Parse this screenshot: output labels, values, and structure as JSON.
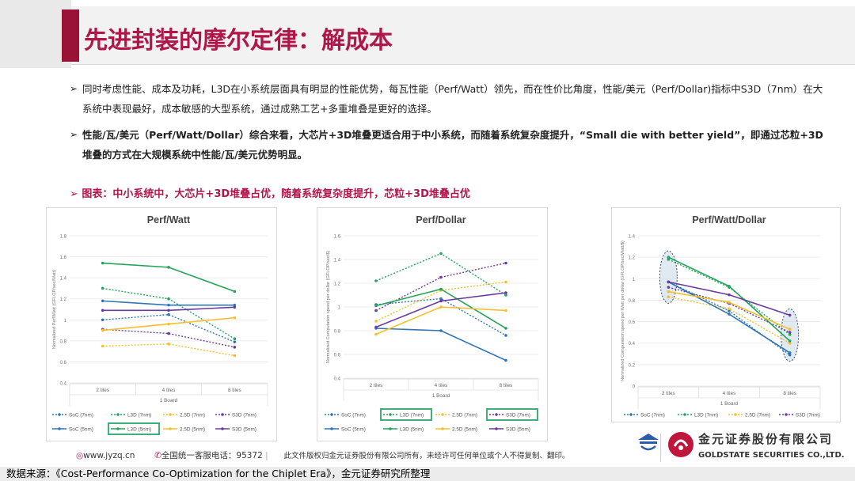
{
  "title": "先进封装的摩尔定律：解成本",
  "bullets": [
    "同时考虑性能、成本及功耗，L3D在小系统层面具有明显的性能优势，每瓦性能（Perf/Watt）领先，而在性价比角度，性能/美元（Perf/Dollar)指标中S3D（7nm）在大系统中表现最好，成本敏感的大型系统，通过成熟工艺+多重堆叠是更好的选择。",
    "性能/瓦/美元（Perf/Watt/Dollar）综合来看，大芯片+3D堆叠更适合用于中小系统，而随着系统复杂度提升，“Small die with better yield”，即通过芯粒+3D堆叠的方式在大规模系统中性能/瓦/美元优势明显。"
  ],
  "subtitle": "图表：中小系统中，大芯片+3D堆叠占优，随着系统复杂度提升，芯粒+3D堆叠占优",
  "footer": {
    "website": "www.jyzq.cn",
    "hotline": "全国统一客服电话：95372",
    "disclaimer": "此文件版权归金元证券股份有限公司所有，未经许可任何单位或个人不得复制、翻印。",
    "company_cn": "金元证券股份有限公司",
    "company_en": "GOLDSTATE SECURITIES CO.,LTD.",
    "source": "数据来源：《Cost-Performance Co-Optimization for the Chiplet Era》，金元证券研究所整理"
  },
  "colors": {
    "title": "#b0164a",
    "SoC": "#2e75b6",
    "L3D": "#22a55a",
    "2.5D": "#f5c02c",
    "S3D": "#6b3aa0"
  },
  "chart_data": [
    {
      "type": "line",
      "title": "Perf/Watt",
      "ylabel": "Normalized Perf/Watt (GFLOP/sec/Watt)",
      "xlabel": "1 Board",
      "categories": [
        "2 tiles",
        "4 tiles",
        "8 tiles"
      ],
      "ylim": [
        0.4,
        1.8
      ],
      "yticks": [
        "0.4",
        "0.6",
        "0.8",
        "1",
        "1.2",
        "1.4",
        "1.6",
        "1.8"
      ],
      "series": [
        {
          "name": "SoC (7nm)",
          "group": "SoC",
          "dashed": true,
          "values": [
            1.0,
            1.05,
            0.79
          ]
        },
        {
          "name": "L3D (7nm)",
          "group": "L3D",
          "dashed": true,
          "values": [
            1.3,
            1.2,
            0.82
          ]
        },
        {
          "name": "2.5D (7nm)",
          "group": "2.5D",
          "dashed": true,
          "values": [
            0.75,
            0.77,
            0.66
          ]
        },
        {
          "name": "S3D (7nm)",
          "group": "S3D",
          "dashed": true,
          "values": [
            0.91,
            0.87,
            0.74
          ]
        },
        {
          "name": "SoC (5nm)",
          "group": "SoC",
          "dashed": false,
          "values": [
            1.18,
            1.14,
            1.14
          ]
        },
        {
          "name": "L3D (5nm)",
          "group": "L3D",
          "dashed": false,
          "values": [
            1.54,
            1.5,
            1.27
          ]
        },
        {
          "name": "2.5D (5nm)",
          "group": "2.5D",
          "dashed": false,
          "values": [
            0.9,
            0.96,
            1.02
          ]
        },
        {
          "name": "S3D (5nm)",
          "group": "S3D",
          "dashed": false,
          "values": [
            1.09,
            1.09,
            1.12
          ]
        }
      ],
      "highlight_legend": [
        "L3D (5nm)"
      ]
    },
    {
      "type": "line",
      "title": "Perf/Dollar",
      "ylabel": "Normalized Computation speed per dollar (GFLOP/sec/$)",
      "xlabel": "1 Board",
      "categories": [
        "2 tiles",
        "4 tiles",
        "8 tiles"
      ],
      "ylim": [
        0.4,
        1.6
      ],
      "yticks": [
        "0.4",
        "0.6",
        "0.8",
        "1",
        "1.2",
        "1.4",
        "1.6"
      ],
      "series": [
        {
          "name": "SoC (7nm)",
          "group": "SoC",
          "dashed": true,
          "values": [
            1.02,
            1.07,
            0.76
          ]
        },
        {
          "name": "L3D (7nm)",
          "group": "L3D",
          "dashed": true,
          "values": [
            1.22,
            1.45,
            1.1
          ]
        },
        {
          "name": "2.5D (7nm)",
          "group": "2.5D",
          "dashed": true,
          "values": [
            0.88,
            1.14,
            1.21
          ]
        },
        {
          "name": "S3D (7nm)",
          "group": "S3D",
          "dashed": true,
          "values": [
            0.97,
            1.25,
            1.37
          ]
        },
        {
          "name": "SoC (5nm)",
          "group": "SoC",
          "dashed": false,
          "values": [
            0.82,
            0.8,
            0.55
          ]
        },
        {
          "name": "L3D (5nm)",
          "group": "L3D",
          "dashed": false,
          "values": [
            1.01,
            1.15,
            0.82
          ]
        },
        {
          "name": "2.5D (5nm)",
          "group": "2.5D",
          "dashed": false,
          "values": [
            0.77,
            1.0,
            0.97
          ]
        },
        {
          "name": "S3D (5nm)",
          "group": "S3D",
          "dashed": false,
          "values": [
            0.83,
            1.05,
            1.12
          ]
        }
      ],
      "highlight_legend": [
        "L3D (7nm)",
        "S3D (7nm)"
      ]
    },
    {
      "type": "line",
      "title": "Perf/Watt/Dollar",
      "ylabel": "Normalized Computation speed per Watt per dollar (GFLOP/sec/Watt/$)",
      "xlabel": "1 Board",
      "categories": [
        "2 tiles",
        "4 tiles",
        "8 tiles"
      ],
      "ylim": [
        0,
        1.4
      ],
      "yticks": [
        "0",
        "0.2",
        "0.4",
        "0.6",
        "0.8",
        "1",
        "1.2",
        "1.4"
      ],
      "series": [
        {
          "name": "SoC (7nm)",
          "group": "SoC",
          "dashed": true,
          "values": [
            0.97,
            0.7,
            0.29
          ]
        },
        {
          "name": "L3D (7nm)",
          "group": "L3D",
          "dashed": true,
          "values": [
            1.18,
            0.92,
            0.48
          ]
        },
        {
          "name": "2.5D (7nm)",
          "group": "2.5D",
          "dashed": true,
          "values": [
            0.83,
            0.72,
            0.4
          ]
        },
        {
          "name": "S3D (7nm)",
          "group": "S3D",
          "dashed": true,
          "values": [
            0.92,
            0.77,
            0.5
          ]
        },
        {
          "name": "SoC (5nm)",
          "group": "SoC",
          "dashed": false,
          "values": [
            0.97,
            0.67,
            0.31
          ]
        },
        {
          "name": "L3D (5nm)",
          "group": "L3D",
          "dashed": false,
          "values": [
            1.2,
            0.93,
            0.42
          ]
        },
        {
          "name": "2.5D (5nm)",
          "group": "2.5D",
          "dashed": false,
          "values": [
            0.88,
            0.78,
            0.53
          ]
        },
        {
          "name": "S3D (5nm)",
          "group": "S3D",
          "dashed": false,
          "values": [
            0.97,
            0.85,
            0.66
          ]
        }
      ],
      "highlight_ellipses": [
        "2 tiles",
        "8 tiles"
      ]
    }
  ]
}
